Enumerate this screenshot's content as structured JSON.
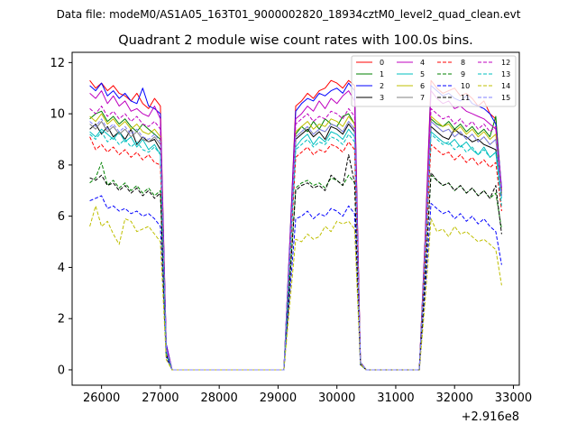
{
  "header": {
    "suptitle": "Data file: modeM0/AS1A05_163T01_9000002820_18934cztM0_level2_quad_clean.evt"
  },
  "chart_data": {
    "type": "line",
    "title": "Quadrant 2 module wise count rates with 100.0s bins.",
    "xlabel": "",
    "ylabel": "",
    "x_offset_label": "+2.916e8",
    "xlim": [
      25500,
      33100
    ],
    "ylim": [
      -0.6,
      12.4
    ],
    "xticks": [
      26000,
      27000,
      28000,
      29000,
      30000,
      31000,
      32000,
      33000
    ],
    "yticks": [
      0,
      2,
      4,
      6,
      8,
      10,
      12
    ],
    "grid": false,
    "legend_position": "top-right",
    "legend_columns": 4,
    "x": [
      25800,
      25900,
      26000,
      26100,
      26200,
      26300,
      26400,
      26500,
      26600,
      26700,
      26800,
      26900,
      27000,
      27100,
      27200,
      28000,
      29000,
      29100,
      29200,
      29300,
      29400,
      29500,
      29600,
      29700,
      29800,
      29900,
      30000,
      30100,
      30200,
      30300,
      30400,
      30500,
      31000,
      31400,
      31500,
      31600,
      31700,
      31800,
      31900,
      32000,
      32100,
      32200,
      32300,
      32400,
      32500,
      32600,
      32700,
      32800
    ],
    "series": [
      {
        "name": "0",
        "color": "#ff0000",
        "dash": "solid",
        "values": [
          11.3,
          11.0,
          11.2,
          10.9,
          11.1,
          10.8,
          10.7,
          10.5,
          10.8,
          10.4,
          10.2,
          10.6,
          10.3,
          1.0,
          0,
          0,
          0,
          0,
          5.0,
          10.3,
          10.5,
          10.8,
          10.6,
          10.9,
          11.0,
          11.3,
          11.2,
          11.0,
          11.3,
          11.1,
          0.3,
          0,
          0,
          0,
          5.2,
          11.3,
          11.0,
          10.8,
          10.9,
          11.0,
          10.7,
          10.8,
          10.6,
          10.3,
          10.5,
          10.0,
          9.8,
          7.0
        ]
      },
      {
        "name": "1",
        "color": "#008000",
        "dash": "solid",
        "values": [
          9.8,
          10.0,
          10.1,
          9.7,
          9.9,
          9.6,
          9.8,
          9.5,
          9.3,
          9.6,
          9.4,
          9.2,
          9.0,
          0.8,
          0,
          0,
          0,
          0,
          4.7,
          9.2,
          9.5,
          9.3,
          9.7,
          9.4,
          9.8,
          9.6,
          9.5,
          9.9,
          10.0,
          9.6,
          0.3,
          0,
          0,
          0,
          4.8,
          9.8,
          9.6,
          9.5,
          9.7,
          9.4,
          9.6,
          9.3,
          9.5,
          9.2,
          9.4,
          9.1,
          9.9,
          6.9
        ]
      },
      {
        "name": "2",
        "color": "#0000ff",
        "dash": "solid",
        "values": [
          11.1,
          10.9,
          11.2,
          10.7,
          10.9,
          10.6,
          10.8,
          10.5,
          10.4,
          11.0,
          10.3,
          10.2,
          10.0,
          1.0,
          0,
          0,
          0,
          0,
          5.0,
          10.1,
          10.4,
          10.6,
          10.5,
          10.8,
          10.7,
          10.9,
          11.0,
          10.8,
          11.2,
          10.9,
          0.3,
          0,
          0,
          0,
          5.1,
          11.1,
          10.9,
          10.7,
          10.8,
          10.6,
          10.5,
          10.7,
          10.4,
          10.3,
          10.2,
          10.0,
          9.6,
          7.1
        ]
      },
      {
        "name": "3",
        "color": "#000000",
        "dash": "solid",
        "values": [
          9.4,
          9.6,
          9.2,
          9.5,
          9.1,
          9.3,
          9.0,
          9.4,
          8.8,
          9.1,
          8.9,
          9.0,
          8.6,
          0.7,
          0,
          0,
          0,
          0,
          4.5,
          9.0,
          9.2,
          9.4,
          9.1,
          9.3,
          9.0,
          9.5,
          9.4,
          9.2,
          9.6,
          9.3,
          0.2,
          0,
          0,
          0,
          4.6,
          9.5,
          9.3,
          9.1,
          9.0,
          9.4,
          9.2,
          9.1,
          8.9,
          9.0,
          8.8,
          8.7,
          8.6,
          6.8
        ]
      },
      {
        "name": "4",
        "color": "#bf00bf",
        "dash": "solid",
        "values": [
          10.8,
          10.6,
          10.9,
          10.4,
          10.7,
          10.3,
          10.5,
          10.1,
          10.2,
          10.0,
          9.9,
          10.3,
          9.8,
          0.9,
          0,
          0,
          0,
          0,
          4.8,
          9.8,
          10.0,
          10.3,
          10.1,
          10.5,
          10.2,
          10.6,
          10.4,
          10.7,
          10.9,
          10.5,
          0.3,
          0,
          0,
          0,
          5.0,
          10.9,
          10.6,
          10.4,
          10.5,
          10.2,
          10.3,
          10.1,
          10.0,
          9.9,
          9.8,
          9.6,
          9.4,
          7.0
        ]
      },
      {
        "name": "5",
        "color": "#00bfbf",
        "dash": "solid",
        "values": [
          9.3,
          9.1,
          9.4,
          9.2,
          9.0,
          9.3,
          8.9,
          9.1,
          8.7,
          9.0,
          8.6,
          8.8,
          8.4,
          0.7,
          0,
          0,
          0,
          0,
          4.4,
          8.7,
          9.0,
          9.2,
          8.8,
          9.1,
          8.9,
          9.3,
          9.2,
          9.0,
          9.4,
          9.1,
          0.2,
          0,
          0,
          0,
          4.5,
          9.3,
          9.1,
          8.9,
          8.8,
          9.0,
          8.7,
          8.9,
          8.6,
          8.4,
          8.7,
          8.3,
          8.5,
          6.7
        ]
      },
      {
        "name": "6",
        "color": "#bfbf00",
        "dash": "solid",
        "values": [
          9.9,
          9.7,
          10.0,
          9.6,
          9.8,
          9.5,
          9.7,
          9.4,
          9.6,
          9.3,
          9.2,
          9.4,
          9.1,
          0.8,
          0,
          0,
          0,
          0,
          4.6,
          9.3,
          9.5,
          9.7,
          9.4,
          9.6,
          9.5,
          9.8,
          9.7,
          9.5,
          9.9,
          9.6,
          0.3,
          0,
          0,
          0,
          4.7,
          9.9,
          9.7,
          9.5,
          9.6,
          9.3,
          9.5,
          9.2,
          9.4,
          9.1,
          9.3,
          9.0,
          9.2,
          6.9
        ]
      },
      {
        "name": "7",
        "color": "#808080",
        "dash": "solid",
        "values": [
          9.6,
          9.4,
          9.7,
          9.3,
          9.5,
          9.2,
          9.4,
          9.1,
          9.3,
          9.0,
          8.9,
          9.1,
          8.8,
          0.8,
          0,
          0,
          0,
          0,
          4.5,
          9.1,
          9.3,
          9.5,
          9.2,
          9.4,
          9.3,
          9.6,
          9.5,
          9.3,
          9.7,
          9.4,
          0.3,
          0,
          0,
          0,
          4.6,
          9.7,
          9.5,
          9.3,
          9.4,
          9.1,
          9.3,
          9.0,
          9.2,
          8.9,
          9.1,
          8.8,
          9.0,
          6.8
        ]
      },
      {
        "name": "8",
        "color": "#ff0000",
        "dash": "dashed",
        "values": [
          9.1,
          8.6,
          8.8,
          8.5,
          8.7,
          8.4,
          8.6,
          8.3,
          8.5,
          8.2,
          8.4,
          8.1,
          8.0,
          0.7,
          0,
          0,
          0,
          0,
          4.2,
          8.3,
          8.5,
          8.7,
          8.4,
          8.6,
          8.5,
          8.8,
          8.7,
          8.5,
          8.9,
          8.6,
          0.2,
          0,
          0,
          0,
          4.3,
          8.8,
          8.6,
          8.4,
          8.5,
          8.2,
          8.4,
          8.1,
          8.3,
          8.0,
          8.2,
          7.9,
          8.1,
          6.2
        ]
      },
      {
        "name": "9",
        "color": "#008000",
        "dash": "dashed",
        "values": [
          7.3,
          7.5,
          8.1,
          7.2,
          7.4,
          7.1,
          7.3,
          7.0,
          7.2,
          6.9,
          7.1,
          6.8,
          7.0,
          0.6,
          0,
          0,
          0,
          0,
          3.6,
          7.1,
          7.3,
          7.4,
          7.2,
          7.3,
          7.1,
          7.5,
          7.4,
          7.2,
          7.6,
          7.3,
          0.2,
          0,
          0,
          0,
          3.7,
          7.6,
          7.4,
          7.2,
          7.3,
          7.0,
          7.2,
          6.9,
          7.1,
          6.8,
          7.0,
          6.7,
          6.9,
          5.5
        ]
      },
      {
        "name": "10",
        "color": "#0000ff",
        "dash": "dashed",
        "values": [
          6.6,
          6.7,
          6.8,
          6.3,
          6.4,
          6.2,
          6.3,
          6.1,
          6.2,
          6.0,
          6.1,
          5.9,
          5.6,
          0.5,
          0,
          0,
          0,
          0,
          3.0,
          5.9,
          6.0,
          6.2,
          5.9,
          6.1,
          6.0,
          6.3,
          6.2,
          6.0,
          6.4,
          6.1,
          0.2,
          0,
          0,
          0,
          3.1,
          6.5,
          6.3,
          6.1,
          6.2,
          5.9,
          6.1,
          5.8,
          6.0,
          5.7,
          5.9,
          5.6,
          5.4,
          4.1
        ]
      },
      {
        "name": "11",
        "color": "#000000",
        "dash": "dashed",
        "values": [
          7.5,
          7.4,
          7.6,
          7.2,
          7.3,
          7.0,
          7.2,
          6.9,
          7.1,
          6.8,
          7.0,
          6.7,
          6.9,
          0.6,
          0,
          0,
          0,
          0,
          3.5,
          7.0,
          7.2,
          7.3,
          7.1,
          7.2,
          7.0,
          7.6,
          7.4,
          7.2,
          8.4,
          7.3,
          0.2,
          0,
          0,
          0,
          3.6,
          7.7,
          7.4,
          7.2,
          7.3,
          7.0,
          7.2,
          6.9,
          7.1,
          6.8,
          7.0,
          6.7,
          7.2,
          5.3
        ]
      },
      {
        "name": "12",
        "color": "#bf00bf",
        "dash": "dashed",
        "values": [
          10.2,
          10.0,
          10.3,
          9.9,
          10.1,
          9.8,
          10.0,
          9.7,
          9.9,
          9.6,
          9.5,
          9.7,
          9.4,
          0.8,
          0,
          0,
          0,
          0,
          4.7,
          9.6,
          9.8,
          10.0,
          9.7,
          9.9,
          9.8,
          10.1,
          10.0,
          9.8,
          10.2,
          9.9,
          0.3,
          0,
          0,
          0,
          4.8,
          10.2,
          10.0,
          9.8,
          9.9,
          9.6,
          9.8,
          9.5,
          9.7,
          9.4,
          9.6,
          9.3,
          9.5,
          7.0
        ]
      },
      {
        "name": "13",
        "color": "#00bfbf",
        "dash": "dashed",
        "values": [
          9.2,
          9.0,
          9.3,
          8.9,
          9.1,
          8.8,
          9.0,
          8.7,
          8.9,
          8.6,
          8.5,
          8.7,
          8.4,
          0.7,
          0,
          0,
          0,
          0,
          4.3,
          8.6,
          8.8,
          9.0,
          8.7,
          8.9,
          8.8,
          9.1,
          9.0,
          8.8,
          9.2,
          8.9,
          0.2,
          0,
          0,
          0,
          4.4,
          9.2,
          9.0,
          8.8,
          8.9,
          8.6,
          8.8,
          8.5,
          8.7,
          8.4,
          8.6,
          8.3,
          8.5,
          6.4
        ]
      },
      {
        "name": "14",
        "color": "#bfbf00",
        "dash": "dashed",
        "values": [
          5.6,
          6.4,
          5.6,
          5.8,
          5.3,
          4.9,
          5.9,
          5.8,
          5.4,
          5.5,
          5.6,
          5.3,
          5.0,
          0.4,
          0,
          0,
          0,
          0,
          2.6,
          5.1,
          5.0,
          5.3,
          5.1,
          5.2,
          5.6,
          5.4,
          5.8,
          5.7,
          5.8,
          5.5,
          0.2,
          0,
          0,
          0,
          2.7,
          5.9,
          5.4,
          5.5,
          5.2,
          5.6,
          5.3,
          5.4,
          5.2,
          5.0,
          5.1,
          4.9,
          4.7,
          3.3
        ]
      },
      {
        "name": "15",
        "color": "#8080ff",
        "dash": "dashed",
        "values": [
          9.7,
          9.5,
          9.8,
          9.4,
          9.6,
          9.3,
          9.5,
          9.2,
          9.4,
          9.1,
          9.0,
          9.2,
          8.9,
          0.8,
          0,
          0,
          0,
          0,
          4.5,
          9.1,
          9.3,
          9.5,
          9.2,
          9.4,
          9.3,
          9.6,
          9.5,
          9.3,
          9.7,
          9.4,
          0.3,
          0,
          0,
          0,
          4.6,
          9.7,
          9.5,
          9.3,
          9.4,
          9.1,
          9.3,
          9.0,
          9.2,
          8.9,
          9.1,
          8.8,
          9.0,
          6.8
        ]
      }
    ]
  }
}
